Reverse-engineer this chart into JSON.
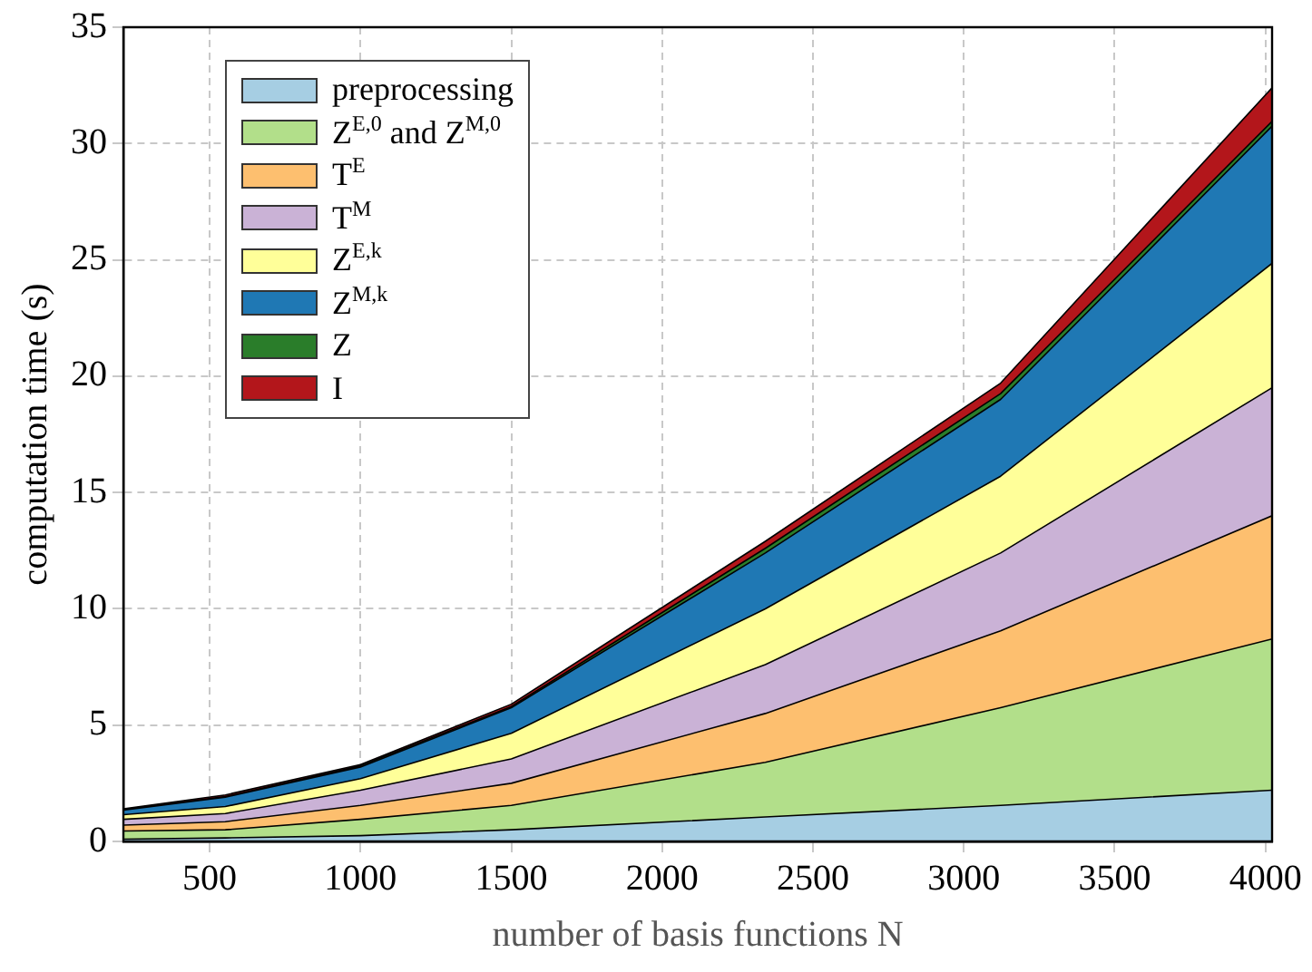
{
  "chart_data": {
    "type": "area",
    "stacked": true,
    "xlabel": "number of basis functions N",
    "ylabel": "computation time (s)",
    "x": [
      214,
      552,
      1000,
      1500,
      2342,
      3122,
      4022
    ],
    "xlim": [
      214,
      4022
    ],
    "xticks": [
      500,
      1000,
      1500,
      2000,
      2500,
      3000,
      3500,
      4000
    ],
    "ylim": [
      0,
      35
    ],
    "yticks": [
      0,
      5,
      10,
      15,
      20,
      25,
      30,
      35
    ],
    "grid": true,
    "legend": "top left",
    "series": [
      {
        "name": "preprocessing",
        "color": "#a6cee3",
        "values": [
          0.1,
          0.15,
          0.25,
          0.5,
          1.05,
          1.55,
          2.2
        ]
      },
      {
        "name": "Z$^{E,0}$ and Z$^{M,0}$",
        "color": "#b2df8a",
        "values": [
          0.35,
          0.35,
          0.7,
          1.05,
          2.35,
          4.2,
          6.5
        ]
      },
      {
        "name": "T$^{E}$",
        "color": "#fdbf6f",
        "values": [
          0.25,
          0.35,
          0.6,
          0.95,
          2.1,
          3.3,
          5.3
        ]
      },
      {
        "name": "T$^{M}$",
        "color": "#cab2d6",
        "values": [
          0.25,
          0.35,
          0.65,
          1.05,
          2.1,
          3.35,
          5.5
        ]
      },
      {
        "name": "Z$^{E,k}$",
        "color": "#ffff99",
        "values": [
          0.2,
          0.3,
          0.5,
          1.1,
          2.4,
          3.3,
          5.35
        ]
      },
      {
        "name": "Z$^{M,k}$",
        "color": "#1f78b4",
        "values": [
          0.2,
          0.4,
          0.5,
          1.1,
          2.4,
          3.3,
          5.9
        ]
      },
      {
        "name": "Z",
        "color": "#2a7d2a",
        "values": [
          0.02,
          0.03,
          0.05,
          0.05,
          0.2,
          0.25,
          0.2
        ]
      },
      {
        "name": "I",
        "color": "#b3161b",
        "values": [
          0.03,
          0.07,
          0.05,
          0.1,
          0.3,
          0.45,
          1.45
        ]
      }
    ]
  }
}
